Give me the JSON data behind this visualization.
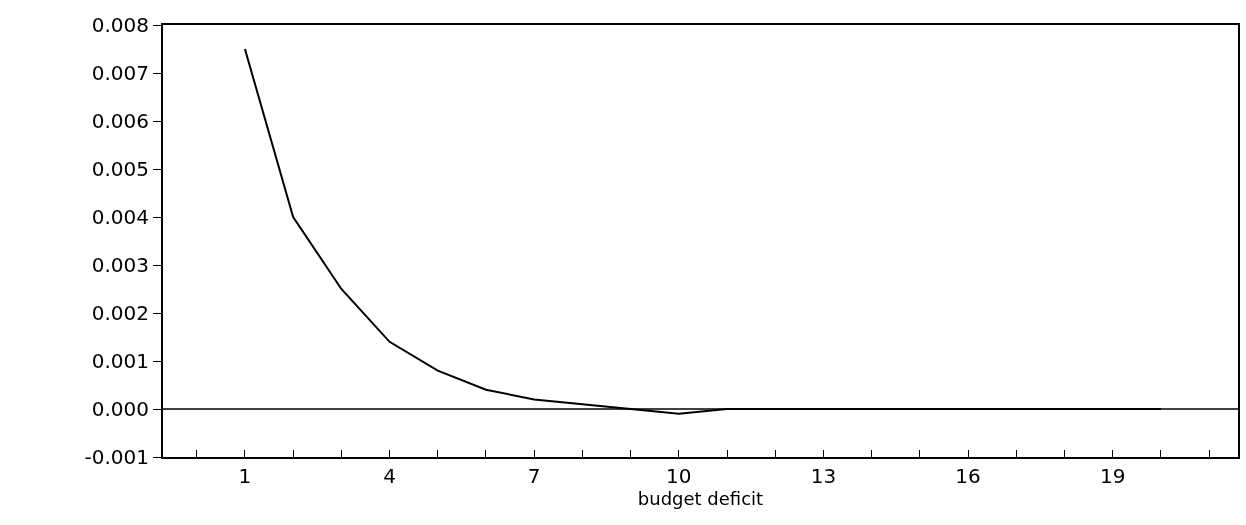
{
  "chart_data": {
    "type": "line",
    "xlabel": "budget deficit",
    "x": [
      1,
      2,
      3,
      4,
      5,
      6,
      7,
      8,
      9,
      10,
      11,
      12,
      13,
      14,
      15,
      16,
      17,
      18,
      19,
      20
    ],
    "series": [
      {
        "color": "#000000",
        "values": [
          0.0075,
          0.004,
          0.0025,
          0.0014,
          0.0008,
          0.0004,
          0.0002,
          0.0001,
          0.0,
          -0.0001,
          0.0,
          0.0,
          0.0,
          0.0,
          0.0,
          0.0,
          0.0,
          0.0,
          0.0,
          0.0
        ]
      }
    ],
    "xlim": [
      -0.7,
      21.6
    ],
    "xticks": [
      {
        "value": 0,
        "label": null
      },
      1,
      {
        "value": 2,
        "label": null
      },
      {
        "value": 3,
        "label": null
      },
      4,
      {
        "value": 5,
        "label": null
      },
      {
        "value": 6,
        "label": null
      },
      7,
      {
        "value": 8,
        "label": null
      },
      {
        "value": 9,
        "label": null
      },
      10,
      {
        "value": 11,
        "label": null
      },
      {
        "value": 12,
        "label": null
      },
      13,
      {
        "value": 14,
        "label": null
      },
      {
        "value": 15,
        "label": null
      },
      16,
      {
        "value": 17,
        "label": null
      },
      {
        "value": 18,
        "label": null
      },
      19,
      {
        "value": 20,
        "label": null
      },
      {
        "value": 21,
        "label": null
      }
    ],
    "ylim": [
      -0.001,
      0.008
    ],
    "yticks": [
      {
        "value": -0.001,
        "label": "-0.001"
      },
      {
        "value": 0,
        "label": "0.000"
      },
      {
        "value": 0.001,
        "label": "0.001"
      },
      {
        "value": 0.002,
        "label": "0.002"
      },
      {
        "value": 0.003,
        "label": "0.003"
      },
      {
        "value": 0.004,
        "label": "0.004"
      },
      {
        "value": 0.005,
        "label": "0.005"
      },
      {
        "value": 0.006,
        "label": "0.006"
      },
      {
        "value": 0.007,
        "label": "0.007"
      },
      {
        "value": 0.008,
        "label": "0.008"
      }
    ],
    "ref_lines": [
      {
        "axis": "y",
        "value": 0,
        "color": "#000000"
      }
    ],
    "marker": "none",
    "line_style": "solid"
  }
}
